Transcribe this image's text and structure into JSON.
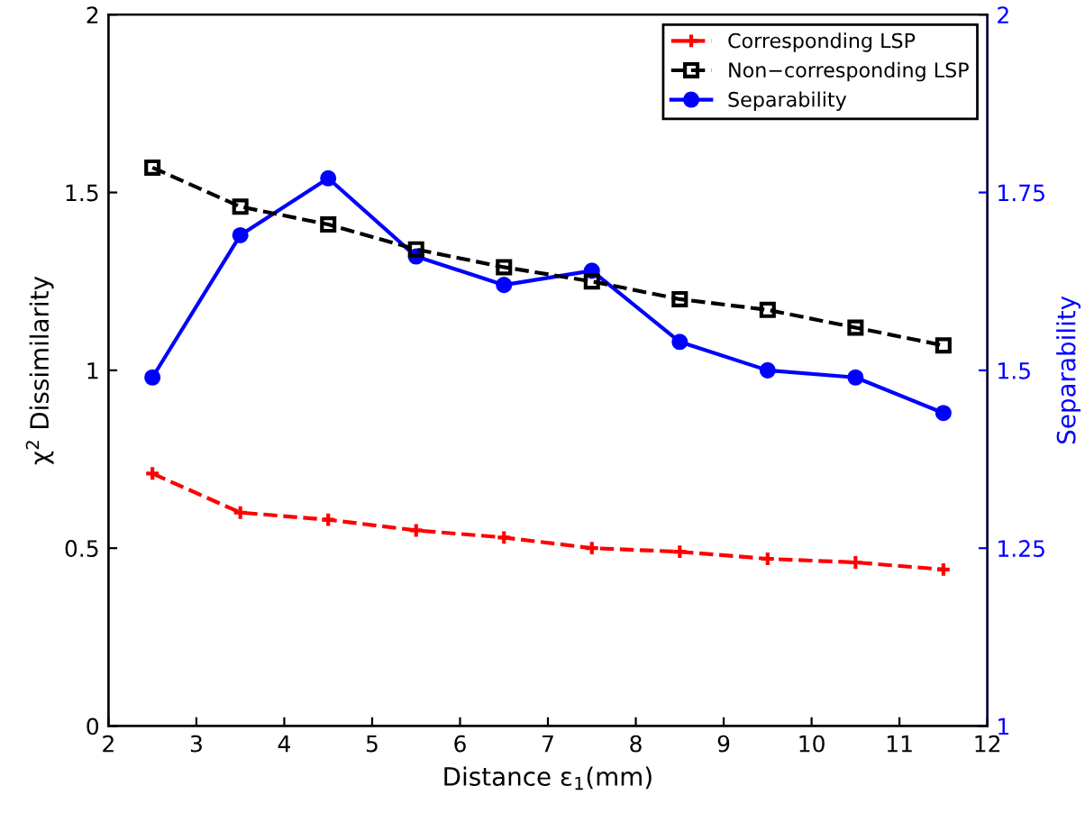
{
  "chart_data": {
    "type": "line",
    "xlabel": "Distance ε$_{1}$(mm)",
    "ylabel": "χ$^{2}$ Dissimilarity",
    "y2label": "Separability",
    "x": [
      2.5,
      3.5,
      4.5,
      5.5,
      6.5,
      7.5,
      8.5,
      9.5,
      10.5,
      11.5
    ],
    "xlim": [
      2,
      12
    ],
    "xticks": [
      2,
      3,
      4,
      5,
      6,
      7,
      8,
      9,
      10,
      11,
      12
    ],
    "ylim": [
      0,
      2
    ],
    "yticks": [
      0,
      0.5,
      1,
      1.5,
      2
    ],
    "y2lim": [
      1,
      2
    ],
    "y2ticks": [
      1,
      1.25,
      1.5,
      1.75,
      2
    ],
    "grid": false,
    "legend": "top right",
    "series": [
      {
        "name": "Corresponding LSP",
        "color": "#ff0000",
        "marker": "cross",
        "line_style": "dashed",
        "values": [
          0.71,
          0.6,
          0.58,
          0.55,
          0.53,
          0.5,
          0.49,
          0.47,
          0.46,
          0.44
        ]
      },
      {
        "name": "Non−corresponding LSP",
        "color": "#000000",
        "marker": "square",
        "line_style": "dashed",
        "values": [
          1.57,
          1.46,
          1.41,
          1.34,
          1.29,
          1.25,
          1.2,
          1.17,
          1.12,
          1.07
        ]
      },
      {
        "name": "Separability",
        "color": "#0000ff",
        "marker": "circle",
        "line_style": "solid",
        "axis": "y2",
        "values": [
          1.49,
          1.69,
          1.77,
          1.66,
          1.62,
          1.64,
          1.54,
          1.5,
          1.49,
          1.44
        ]
      }
    ]
  }
}
